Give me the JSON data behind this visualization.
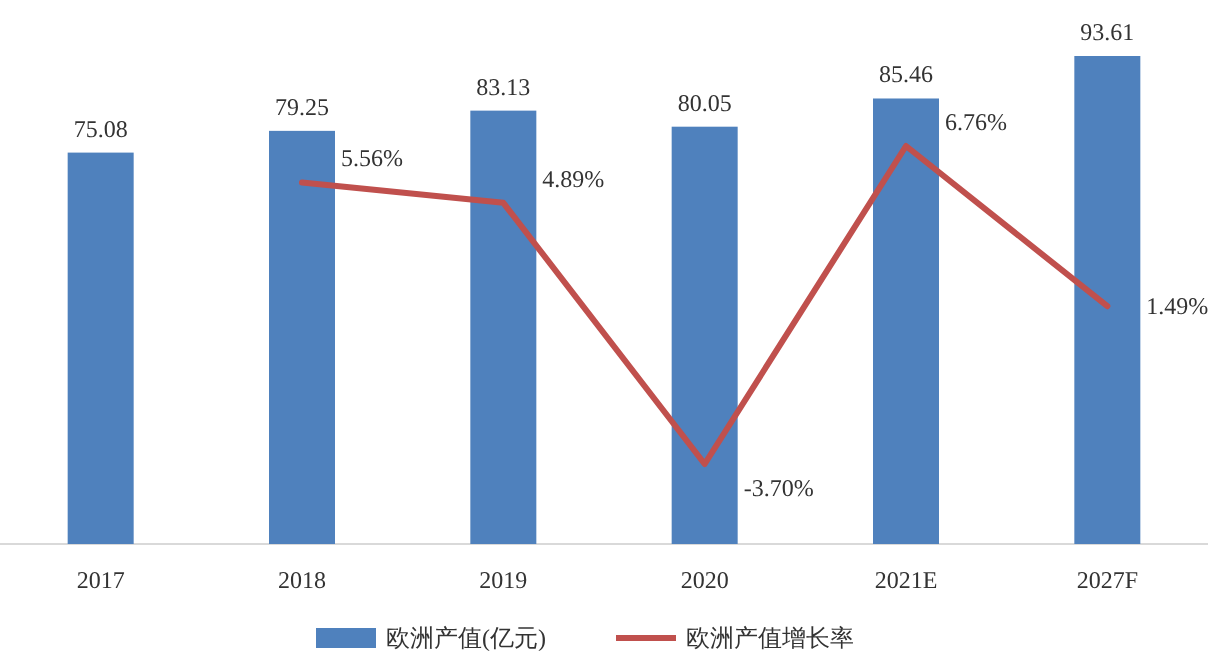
{
  "chart_data": {
    "type": "bar",
    "categories": [
      "2017",
      "2018",
      "2019",
      "2020",
      "2021E",
      "2027F"
    ],
    "series": [
      {
        "name": "欧洲产值(亿元)",
        "color": "#4f81bd",
        "values": [
          75.08,
          79.25,
          83.13,
          80.05,
          85.46,
          93.61
        ]
      },
      {
        "name": "欧洲产值增长率",
        "type": "line",
        "axis": "y2",
        "color": "#c0504d",
        "values": [
          null,
          5.56,
          4.89,
          -3.7,
          6.76,
          1.49
        ],
        "value_labels": [
          null,
          "5.56%",
          "4.89%",
          "-3.70%",
          "6.76%",
          "1.49%"
        ]
      }
    ],
    "data_labels": true,
    "legend": "bottom",
    "marker": "none",
    "line_style": "solid"
  }
}
